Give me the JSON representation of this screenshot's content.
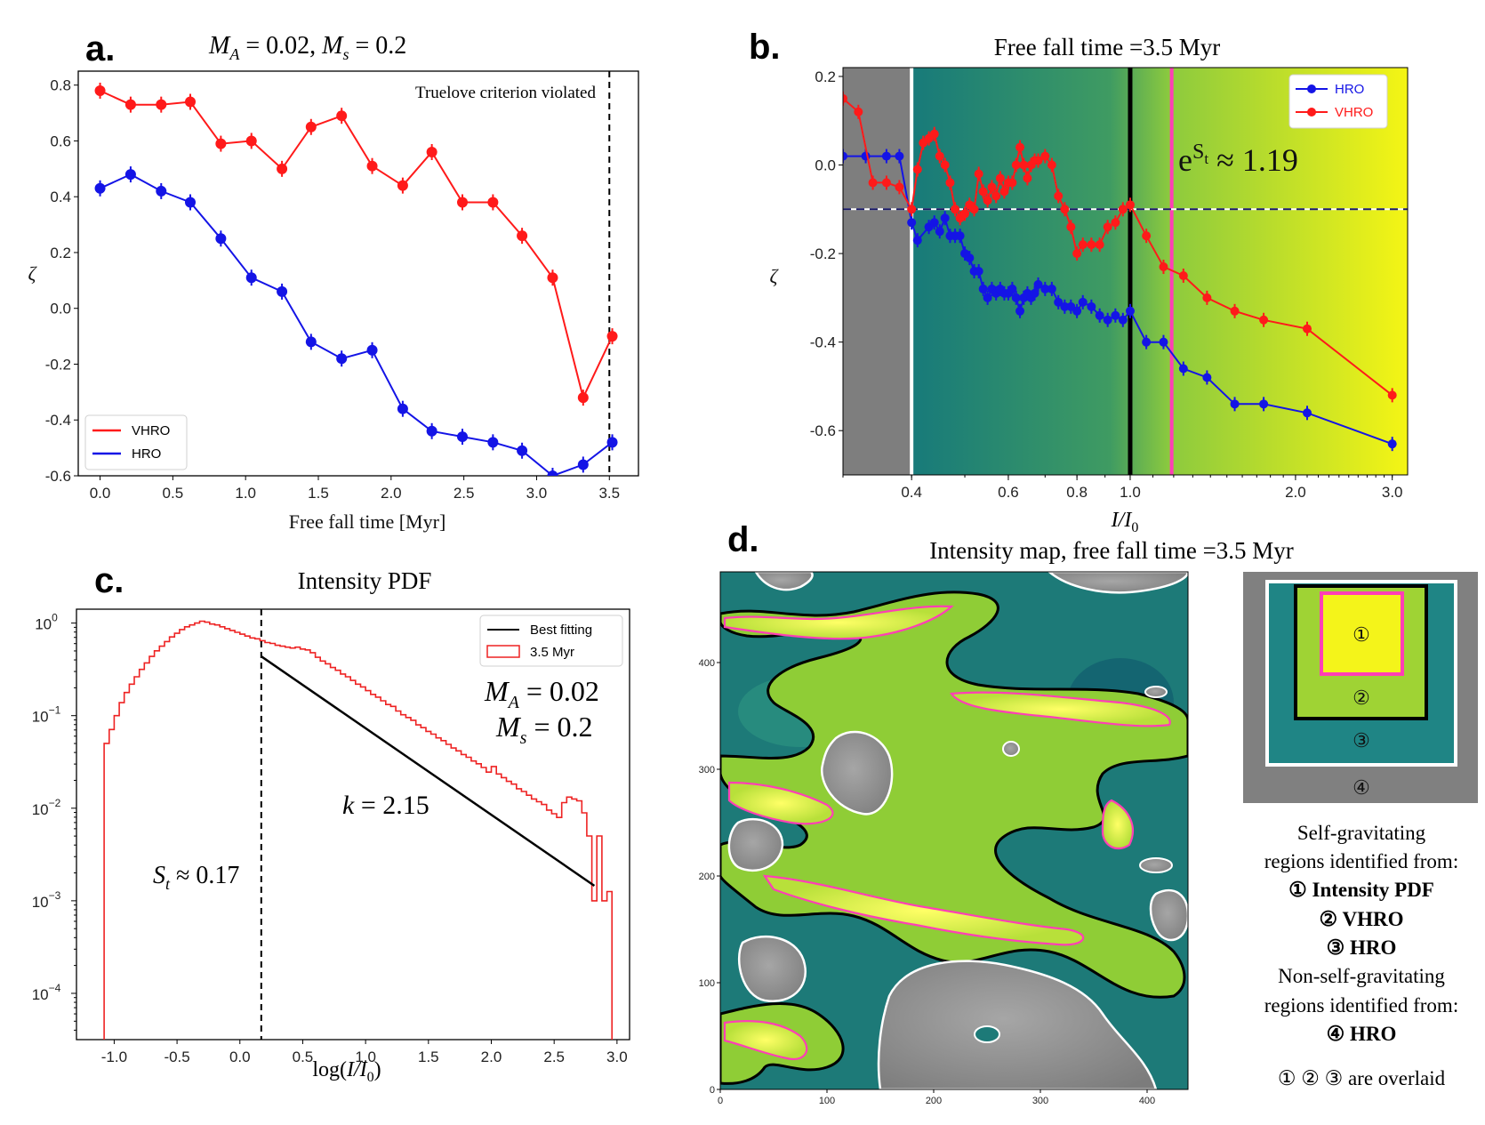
{
  "panels": {
    "a": "a.",
    "b": "b.",
    "c": "c.",
    "d": "d."
  },
  "colors": {
    "vhro": "#ff1a1a",
    "hro": "#1414e6",
    "hist": "#ee2222",
    "fit": "#000000",
    "teal": "#1a7f7a",
    "green": "#9fd334",
    "yellow": "#f4f41a",
    "gray": "#808080",
    "magenta": "#ff3fb5"
  },
  "chart_data": [
    {
      "id": "a",
      "type": "line",
      "title": "M_A = 0.02, M_s = 0.2",
      "title_parts": {
        "m1": "M",
        "sub1": "A",
        "mid": " = 0.02, ",
        "m2": "M",
        "sub2": "s",
        "end": " = 0.2"
      },
      "xlabel": "Free fall time [Myr]",
      "ylabel": "ζ",
      "xlim": [
        -0.15,
        3.7
      ],
      "ylim": [
        -0.6,
        0.85
      ],
      "xticks": [
        0.0,
        0.5,
        1.0,
        1.5,
        2.0,
        2.5,
        3.0,
        3.5
      ],
      "xtick_labels": [
        "0.0",
        "0.5",
        "1.0",
        "1.5",
        "2.0",
        "2.5",
        "3.0",
        "3.5"
      ],
      "yticks": [
        0.8,
        0.6,
        0.4,
        0.2,
        0.0,
        -0.2,
        -0.4,
        -0.6
      ],
      "ytick_labels": [
        "0.8",
        "0.6",
        "0.4",
        "0.2",
        "0.0",
        "-0.2",
        "-0.4",
        "-0.6"
      ],
      "annotation": "Truelove criterion violated",
      "vline": 3.5,
      "legend": [
        "VHRO",
        "HRO"
      ],
      "x": [
        0.0,
        0.21,
        0.42,
        0.62,
        0.83,
        1.04,
        1.25,
        1.45,
        1.66,
        1.87,
        2.08,
        2.28,
        2.49,
        2.7,
        2.9,
        3.11,
        3.32,
        3.52
      ],
      "series": [
        {
          "name": "VHRO",
          "values": [
            0.78,
            0.73,
            0.73,
            0.74,
            0.59,
            0.6,
            0.5,
            0.65,
            0.69,
            0.51,
            0.44,
            0.56,
            0.38,
            0.38,
            0.26,
            0.11,
            -0.32,
            -0.1
          ]
        },
        {
          "name": "HRO",
          "values": [
            0.43,
            0.48,
            0.42,
            0.38,
            0.25,
            0.11,
            0.06,
            -0.12,
            -0.18,
            -0.15,
            -0.36,
            -0.44,
            -0.46,
            -0.48,
            -0.51,
            -0.6,
            -0.56,
            -0.48
          ]
        }
      ]
    },
    {
      "id": "b",
      "type": "line",
      "title": "Free fall time =3.5 Myr",
      "xlabel_parts": {
        "i": "I/I",
        "sub": "0"
      },
      "ylabel": "ζ",
      "xscale": "log",
      "xlim": [
        0.3,
        3.2
      ],
      "ylim": [
        -0.7,
        0.22
      ],
      "xticks": [
        0.4,
        0.6,
        0.8,
        1.0,
        2.0,
        3.0
      ],
      "xtick_labels": [
        "0.4",
        "0.6",
        "0.8",
        "1.0",
        "2.0",
        "3.0"
      ],
      "yticks": [
        0.2,
        0.0,
        -0.2,
        -0.4,
        -0.6
      ],
      "ytick_labels": [
        "0.2",
        "0.0",
        "-0.2",
        "-0.4",
        "-0.6"
      ],
      "hline": -0.1,
      "vlines": {
        "white": 0.4,
        "black": 1.0,
        "magenta": 1.19
      },
      "annotation": {
        "base": "e",
        "sup": "S",
        "sub": "t",
        "rest": " ≈ 1.19"
      },
      "legend": [
        "HRO",
        "VHRO"
      ],
      "series": [
        {
          "name": "HRO",
          "x": [
            0.3,
            0.33,
            0.36,
            0.38,
            0.4,
            0.41,
            0.43,
            0.44,
            0.45,
            0.46,
            0.47,
            0.48,
            0.49,
            0.5,
            0.51,
            0.52,
            0.53,
            0.54,
            0.55,
            0.56,
            0.57,
            0.58,
            0.59,
            0.6,
            0.61,
            0.62,
            0.63,
            0.64,
            0.65,
            0.66,
            0.67,
            0.68,
            0.7,
            0.72,
            0.74,
            0.76,
            0.78,
            0.8,
            0.82,
            0.85,
            0.88,
            0.91,
            0.94,
            0.97,
            1.0,
            1.07,
            1.15,
            1.25,
            1.38,
            1.55,
            1.75,
            2.1,
            3.0
          ],
          "values": [
            0.02,
            0.02,
            0.02,
            0.02,
            -0.13,
            -0.17,
            -0.14,
            -0.13,
            -0.15,
            -0.12,
            -0.16,
            -0.16,
            -0.16,
            -0.2,
            -0.21,
            -0.24,
            -0.24,
            -0.28,
            -0.3,
            -0.28,
            -0.29,
            -0.28,
            -0.29,
            -0.29,
            -0.28,
            -0.3,
            -0.33,
            -0.3,
            -0.29,
            -0.3,
            -0.29,
            -0.27,
            -0.28,
            -0.28,
            -0.31,
            -0.32,
            -0.32,
            -0.33,
            -0.31,
            -0.32,
            -0.34,
            -0.35,
            -0.34,
            -0.35,
            -0.33,
            -0.4,
            -0.4,
            -0.46,
            -0.48,
            -0.54,
            -0.54,
            -0.56,
            -0.63
          ]
        },
        {
          "name": "VHRO",
          "x": [
            0.3,
            0.32,
            0.34,
            0.36,
            0.38,
            0.4,
            0.41,
            0.42,
            0.43,
            0.44,
            0.45,
            0.46,
            0.47,
            0.48,
            0.49,
            0.5,
            0.51,
            0.52,
            0.53,
            0.54,
            0.55,
            0.56,
            0.57,
            0.58,
            0.59,
            0.6,
            0.61,
            0.62,
            0.63,
            0.64,
            0.65,
            0.66,
            0.67,
            0.68,
            0.7,
            0.72,
            0.74,
            0.76,
            0.78,
            0.8,
            0.82,
            0.85,
            0.88,
            0.91,
            0.94,
            0.97,
            1.0,
            1.07,
            1.15,
            1.25,
            1.38,
            1.55,
            1.75,
            2.1,
            3.0
          ],
          "values": [
            0.15,
            0.12,
            -0.04,
            -0.04,
            -0.05,
            -0.1,
            -0.01,
            0.05,
            0.06,
            0.07,
            0.02,
            0.0,
            -0.04,
            -0.1,
            -0.12,
            -0.11,
            -0.09,
            -0.1,
            -0.02,
            -0.06,
            -0.08,
            -0.05,
            -0.07,
            -0.03,
            -0.06,
            -0.04,
            -0.04,
            0.0,
            0.04,
            0.0,
            -0.03,
            0.0,
            0.01,
            0.01,
            0.02,
            0.0,
            -0.07,
            -0.1,
            -0.14,
            -0.2,
            -0.18,
            -0.18,
            -0.18,
            -0.14,
            -0.13,
            -0.1,
            -0.09,
            -0.16,
            -0.23,
            -0.25,
            -0.3,
            -0.33,
            -0.35,
            -0.37,
            -0.52
          ]
        }
      ]
    },
    {
      "id": "c",
      "type": "step",
      "title": "Intensity PDF",
      "xlabel_parts": {
        "pre": "log(",
        "i": "I/I",
        "sub": "0",
        "post": ")"
      },
      "yscale": "log",
      "xlim": [
        -1.3,
        3.1
      ],
      "ylim_log10": [
        -4.5,
        0.15
      ],
      "xticks": [
        -1.0,
        -0.5,
        0.0,
        0.5,
        1.0,
        1.5,
        2.0,
        2.5,
        3.0
      ],
      "xtick_labels": [
        "-1.0",
        "-0.5",
        "0.0",
        "0.5",
        "1.0",
        "1.5",
        "2.0",
        "2.5",
        "3.0"
      ],
      "yticks_log10": [
        0,
        -1,
        -2,
        -3,
        -4
      ],
      "ytick_labels": [
        {
          "b": "10",
          "e": "0"
        },
        {
          "b": "10",
          "e": "−1"
        },
        {
          "b": "10",
          "e": "−2"
        },
        {
          "b": "10",
          "e": "−3"
        },
        {
          "b": "10",
          "e": "−4"
        }
      ],
      "vline": 0.17,
      "legend": [
        "Best fitting",
        "3.5 Myr"
      ],
      "fit": {
        "x0": 0.17,
        "x1": 2.82,
        "y0_log10": -0.36,
        "slope_log10_per_unit": -0.935
      },
      "annotations": {
        "ma": {
          "m": "M",
          "sub": "A",
          "rest": " = 0.02"
        },
        "ms": {
          "m": "M",
          "sub": "s",
          "rest": " = 0.2"
        },
        "k": {
          "m": "k",
          "rest": " = 2.15"
        },
        "st": {
          "m": "S",
          "sub": "t",
          "rest": " ≈ 0.17"
        }
      },
      "hist": {
        "x0": -1.08,
        "bin": 0.04,
        "log10_values": [
          -1.3,
          -1.15,
          -1.0,
          -0.86,
          -0.75,
          -0.66,
          -0.58,
          -0.5,
          -0.43,
          -0.36,
          -0.3,
          -0.25,
          -0.2,
          -0.15,
          -0.11,
          -0.07,
          -0.04,
          -0.02,
          0.0,
          0.02,
          0.01,
          -0.01,
          -0.02,
          -0.04,
          -0.06,
          -0.08,
          -0.1,
          -0.12,
          -0.14,
          -0.16,
          -0.17,
          -0.19,
          -0.21,
          -0.22,
          -0.24,
          -0.25,
          -0.26,
          -0.27,
          -0.26,
          -0.28,
          -0.29,
          -0.32,
          -0.37,
          -0.41,
          -0.44,
          -0.48,
          -0.51,
          -0.55,
          -0.58,
          -0.62,
          -0.66,
          -0.69,
          -0.73,
          -0.77,
          -0.8,
          -0.84,
          -0.88,
          -0.9,
          -0.95,
          -0.99,
          -1.02,
          -1.05,
          -1.1,
          -1.13,
          -1.17,
          -1.2,
          -1.24,
          -1.27,
          -1.31,
          -1.35,
          -1.38,
          -1.42,
          -1.45,
          -1.49,
          -1.52,
          -1.56,
          -1.61,
          -1.55,
          -1.63,
          -1.67,
          -1.71,
          -1.74,
          -1.79,
          -1.82,
          -1.86,
          -1.9,
          -1.93,
          -1.96,
          -2.02,
          -2.06,
          -2.1,
          -1.94,
          -1.88,
          -1.9,
          -1.92,
          -2.05,
          -2.3,
          -3.0,
          -2.3,
          -3.0,
          -2.9
        ]
      }
    }
  ],
  "map": {
    "title": "Intensity map, free fall time =3.5 Myr",
    "xtick_labels": [
      "0",
      "100",
      "200",
      "300",
      "400"
    ],
    "ytick_labels": [
      "0",
      "100",
      "200",
      "300",
      "400"
    ]
  },
  "schematic": {
    "l1": "①",
    "l2": "②",
    "l3": "③",
    "l4": "④"
  },
  "caption": {
    "line1": "Self-gravitating",
    "line2": "regions identified from:",
    "line3": "① Intensity PDF",
    "line4": "② VHRO",
    "line5": "③ HRO",
    "line6": "Non-self-gravitating",
    "line7": "regions identified from:",
    "line8": "④ HRO",
    "line9": "① ② ③ are overlaid"
  }
}
